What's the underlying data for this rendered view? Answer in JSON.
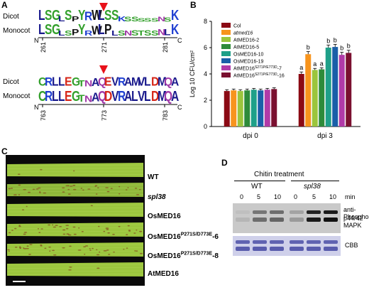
{
  "panels": {
    "a": "A",
    "b": "B",
    "c": "C",
    "d": "D"
  },
  "panel_a": {
    "logo1": {
      "row1_label": "Dicot",
      "row2_label": "Monocot",
      "row1_letters": [
        "L",
        "S",
        "G",
        "L",
        "S",
        "P",
        "Y",
        "R",
        "W",
        "L",
        "S",
        "S",
        "K",
        "S",
        "S",
        "S",
        "S",
        "S",
        "N",
        "S",
        "K"
      ],
      "row2_letters": [
        "L",
        "S",
        "G",
        "L",
        "S",
        "P",
        "Y",
        "R",
        "W",
        "L",
        "P",
        "L",
        "S",
        "N",
        "S",
        "T",
        "S",
        "S",
        "N",
        "L",
        "K"
      ],
      "positions": [
        "261",
        "271",
        "281"
      ],
      "n": "N",
      "c": "C"
    },
    "logo2": {
      "row1_label": "Dicot",
      "row2_label": "Monocot",
      "row1_letters": [
        "C",
        "R",
        "L",
        "L",
        "E",
        "G",
        "T",
        "N",
        "A",
        "Q",
        "E",
        "V",
        "R",
        "A",
        "M",
        "V",
        "L",
        "D",
        "M",
        "Q",
        "A"
      ],
      "row2_letters": [
        "C",
        "R",
        "L",
        "L",
        "E",
        "G",
        "T",
        "N",
        "A",
        "Q",
        "D",
        "V",
        "R",
        "A",
        "L",
        "V",
        "L",
        "D",
        "M",
        "Q",
        "A"
      ],
      "positions": [
        "763",
        "773",
        "783"
      ],
      "n": "N",
      "c": "C"
    },
    "arrow_color": "#e8111a"
  },
  "chart_data": {
    "type": "bar",
    "categories": [
      "dpi 0",
      "dpi 3"
    ],
    "ylabel": "Log 10 CFU/cm²",
    "ylim": [
      0,
      8
    ],
    "yticks": [
      "0",
      "2",
      "4",
      "6",
      "8"
    ],
    "series": [
      {
        "name": "Col",
        "color": "#8b0a14",
        "values": [
          2.7,
          4.0
        ],
        "errors": [
          0.1,
          0.15
        ],
        "sig": [
          "",
          "a"
        ]
      },
      {
        "name": "atmed16",
        "color": "#f7941d",
        "values": [
          2.75,
          5.5
        ],
        "errors": [
          0.1,
          0.2
        ],
        "sig": [
          "",
          "b"
        ]
      },
      {
        "name": "AtMED16-2",
        "color": "#9bc53d",
        "values": [
          2.7,
          4.3
        ],
        "errors": [
          0.1,
          0.12
        ],
        "sig": [
          "",
          "a"
        ]
      },
      {
        "name": "AtMED16-5",
        "color": "#2e8b3a",
        "values": [
          2.75,
          4.35
        ],
        "errors": [
          0.1,
          0.12
        ],
        "sig": [
          "",
          "a"
        ]
      },
      {
        "name": "OsMED16-10",
        "color": "#1fa089",
        "values": [
          2.8,
          6.0
        ],
        "errors": [
          0.1,
          0.2
        ],
        "sig": [
          "",
          "b"
        ]
      },
      {
        "name": "OsMED16-19",
        "color": "#1a5fa8",
        "values": [
          2.75,
          6.05
        ],
        "errors": [
          0.1,
          0.2
        ],
        "sig": [
          "",
          "b"
        ]
      },
      {
        "name": "AtMED16 S271P/E773D -7",
        "color": "#b13aa8",
        "values": [
          2.8,
          5.45
        ],
        "errors": [
          0.1,
          0.2
        ],
        "sig": [
          "",
          "b"
        ]
      },
      {
        "name": "AtMED16 S271P/E773D -16",
        "color": "#7a1030",
        "values": [
          2.85,
          5.6
        ],
        "errors": [
          0.1,
          0.2
        ],
        "sig": [
          "",
          "b"
        ]
      }
    ]
  },
  "panel_c": {
    "labels": [
      "WT",
      "spl38",
      "OsMED16",
      "OsMED16P271S/D773E-6",
      "OsMED16P271S/D773E-8",
      "AtMED16"
    ]
  },
  "panel_d": {
    "title": "Chitin treatment",
    "groups": [
      "WT",
      "spl38"
    ],
    "times": [
      "0",
      "5",
      "10",
      "0",
      "5",
      "10"
    ],
    "time_unit": "min",
    "blot1_label_line1": "anti-Phospho-",
    "blot1_label_line2": "p44/42 MAPK",
    "blot2_label": "CBB"
  }
}
